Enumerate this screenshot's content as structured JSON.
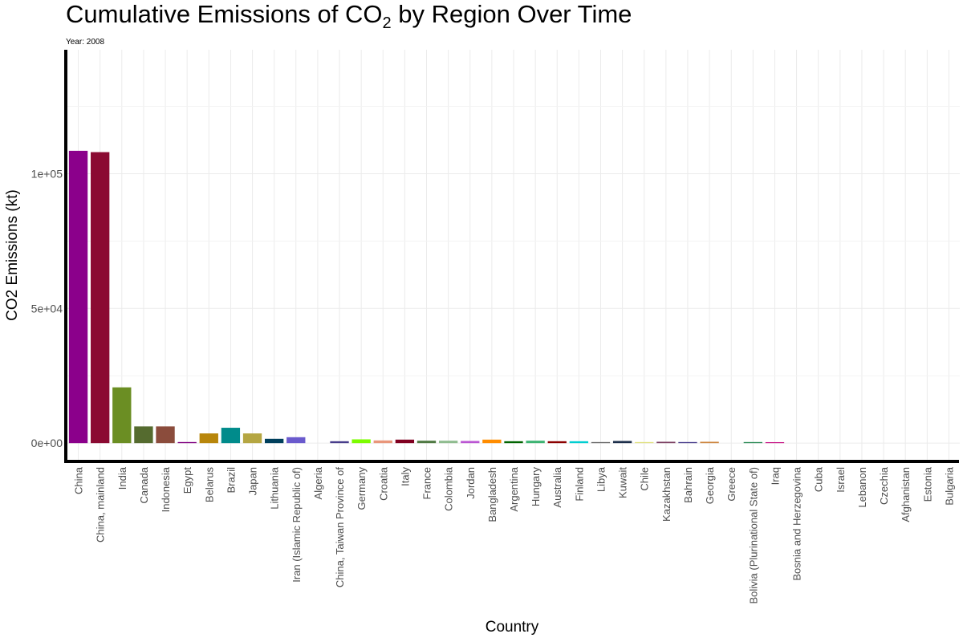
{
  "chart_data": {
    "type": "bar",
    "title_pre": "Cumulative Emissions of CO",
    "title_sub": "2",
    "title_post": " by Region Over Time",
    "subtitle": "Year: 2008",
    "xlabel": "Country",
    "ylabel": "CO2 Emissions (kt)",
    "ylim": [
      -6500,
      146000
    ],
    "yticks": [
      0,
      50000,
      100000
    ],
    "ytick_labels": [
      "0e+00",
      "5e+04",
      "1e+05"
    ],
    "grid": true,
    "categories": [
      "China",
      "China, mainland",
      "India",
      "Canada",
      "Indonesia",
      "Egypt",
      "Belarus",
      "Brazil",
      "Japan",
      "Lithuania",
      "Iran (Islamic Republic of)",
      "Algeria",
      "China, Taiwan Province of",
      "Germany",
      "Croatia",
      "Italy",
      "France",
      "Colombia",
      "Jordan",
      "Bangladesh",
      "Argentina",
      "Hungary",
      "Australia",
      "Finland",
      "Libya",
      "Kuwait",
      "Chile",
      "Kazakhstan",
      "Bahrain",
      "Georgia",
      "Greece",
      "Bolivia (Plurinational State of)",
      "Iraq",
      "Bosnia and Herzegovina",
      "Cuba",
      "Israel",
      "Lebanon",
      "Czechia",
      "Afghanistan",
      "Estonia",
      "Bulgaria"
    ],
    "values": [
      108500,
      108000,
      20700,
      6200,
      6200,
      400,
      3600,
      5700,
      3600,
      1600,
      2200,
      0,
      700,
      1400,
      1000,
      1300,
      900,
      900,
      800,
      1300,
      700,
      900,
      700,
      700,
      400,
      800,
      400,
      500,
      400,
      500,
      0,
      400,
      300,
      0,
      0,
      0,
      0,
      0,
      0,
      0,
      0
    ],
    "colors": [
      "#8b008b",
      "#8b0a32",
      "#6b8e23",
      "#556b2f",
      "#8b4c3c",
      "#800080",
      "#b8860b",
      "#008b8b",
      "#b5a642",
      "#003f5c",
      "#6a5acd",
      "#ffffff",
      "#483d8b",
      "#7cfc00",
      "#e9967a",
      "#800020",
      "#4f7942",
      "#8fbc8f",
      "#ba55d3",
      "#ff8c00",
      "#006400",
      "#3cb371",
      "#8b0000",
      "#00ced1",
      "#696969",
      "#1c2e4a",
      "#e0e080",
      "#7b3f61",
      "#483d8b",
      "#cd853f",
      "#cccccc",
      "#2e8b57",
      "#c71585",
      "#ffffff",
      "#ffffff",
      "#ffffff",
      "#ffffff",
      "#ffffff",
      "#ffffff",
      "#ffffff",
      "#ffffff"
    ]
  }
}
